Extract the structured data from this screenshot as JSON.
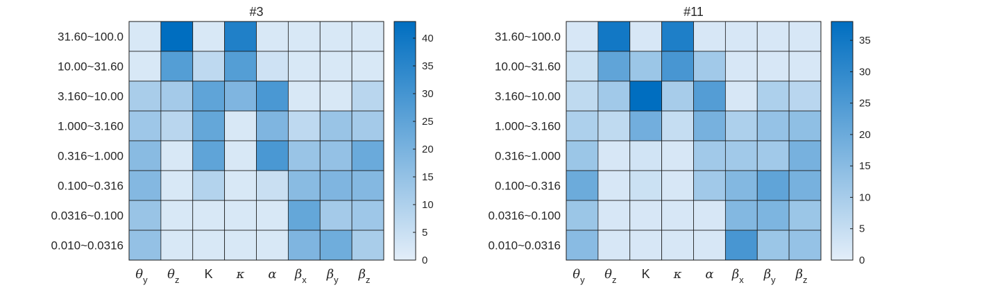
{
  "chart_data": [
    {
      "type": "heatmap",
      "title": "#3",
      "rows": [
        "31.60~100.0",
        "10.00~31.60",
        "3.160~10.00",
        "1.000~3.160",
        "0.316~1.000",
        "0.100~0.316",
        "0.0316~0.100",
        "0.010~0.0316"
      ],
      "columns": [
        {
          "symbol": "θ",
          "sub": "y"
        },
        {
          "symbol": "θ",
          "sub": "z"
        },
        {
          "symbol": "K",
          "sub": ""
        },
        {
          "symbol": "κ",
          "sub": ""
        },
        {
          "symbol": "α",
          "sub": ""
        },
        {
          "symbol": "β",
          "sub": "x"
        },
        {
          "symbol": "β",
          "sub": "y"
        },
        {
          "symbol": "β",
          "sub": "z"
        }
      ],
      "values": [
        [
          2,
          43,
          2,
          37,
          2,
          2,
          2,
          2
        ],
        [
          2,
          27,
          7,
          27,
          4,
          2,
          2,
          2
        ],
        [
          11,
          12,
          25,
          19,
          29,
          2,
          2,
          8
        ],
        [
          13,
          8,
          24,
          2,
          19,
          7,
          14,
          12
        ],
        [
          17,
          2,
          25,
          2,
          29,
          14,
          15,
          23
        ],
        [
          18,
          2,
          9,
          2,
          5,
          17,
          19,
          18
        ],
        [
          14,
          2,
          2,
          2,
          2,
          24,
          12,
          13
        ],
        [
          15,
          2,
          2,
          2,
          2,
          19,
          22,
          11
        ]
      ],
      "colorbar": {
        "min": 0,
        "max": 43,
        "ticks": [
          0,
          5,
          10,
          15,
          20,
          25,
          30,
          35,
          40
        ]
      }
    },
    {
      "type": "heatmap",
      "title": "#11",
      "rows": [
        "31.60~100.0",
        "10.00~31.60",
        "3.160~10.00",
        "1.000~3.160",
        "0.316~1.000",
        "0.100~0.316",
        "0.0316~0.100",
        "0.010~0.0316"
      ],
      "columns": [
        {
          "symbol": "θ",
          "sub": "y"
        },
        {
          "symbol": "θ",
          "sub": "z"
        },
        {
          "symbol": "K",
          "sub": ""
        },
        {
          "symbol": "κ",
          "sub": ""
        },
        {
          "symbol": "α",
          "sub": ""
        },
        {
          "symbol": "β",
          "sub": "x"
        },
        {
          "symbol": "β",
          "sub": "y"
        },
        {
          "symbol": "β",
          "sub": "z"
        }
      ],
      "values": [
        [
          2,
          35,
          2,
          33,
          2,
          2,
          2,
          2
        ],
        [
          4,
          22,
          12,
          26,
          11,
          2,
          2,
          2
        ],
        [
          6,
          11,
          38,
          10,
          24,
          2,
          9,
          7
        ],
        [
          9,
          6,
          19,
          5,
          18,
          9,
          13,
          14
        ],
        [
          12,
          2,
          3,
          2,
          11,
          11,
          11,
          18
        ],
        [
          20,
          2,
          4,
          2,
          11,
          16,
          22,
          18
        ],
        [
          12,
          2,
          2,
          2,
          2,
          16,
          17,
          12
        ],
        [
          15,
          2,
          2,
          2,
          2,
          26,
          12,
          13
        ]
      ],
      "colorbar": {
        "min": 0,
        "max": 38,
        "ticks": [
          0,
          5,
          10,
          15,
          20,
          25,
          30,
          35
        ]
      }
    }
  ]
}
